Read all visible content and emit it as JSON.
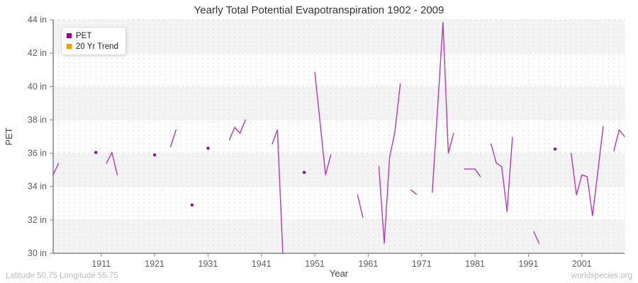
{
  "header": {
    "title": "Yearly Total Potential Evapotranspiration 1902 - 2009"
  },
  "legend": {
    "items": [
      {
        "label": "PET",
        "color": "#990099"
      },
      {
        "label": "20 Yr Trend",
        "color": "#ff9900"
      }
    ]
  },
  "footer": {
    "left": "Latitude 50.75 Longitude 55.75",
    "right": "worldspecies.org"
  },
  "chart_data": {
    "type": "line",
    "title": "Yearly Total Potential Evapotranspiration 1902 - 2009",
    "xlabel": "Year",
    "ylabel": "PET",
    "xlim": [
      1902,
      2009
    ],
    "ylim": [
      30,
      44
    ],
    "grid": true,
    "legend_position": "top-left",
    "y_ticks": [
      {
        "value": 30,
        "label": "30 in"
      },
      {
        "value": 32,
        "label": "32 in"
      },
      {
        "value": 34,
        "label": "34 in"
      },
      {
        "value": 36,
        "label": "36 in"
      },
      {
        "value": 38,
        "label": "38 in"
      },
      {
        "value": 40,
        "label": "40 in"
      },
      {
        "value": 42,
        "label": "42 in"
      },
      {
        "value": 44,
        "label": "44 in"
      }
    ],
    "x_ticks": [
      {
        "value": 1911,
        "label": "1911"
      },
      {
        "value": 1921,
        "label": "1921"
      },
      {
        "value": 1931,
        "label": "1931"
      },
      {
        "value": 1941,
        "label": "1941"
      },
      {
        "value": 1951,
        "label": "1951"
      },
      {
        "value": 1961,
        "label": "1961"
      },
      {
        "value": 1971,
        "label": "1971"
      },
      {
        "value": 1981,
        "label": "1981"
      },
      {
        "value": 1991,
        "label": "1991"
      },
      {
        "value": 2001,
        "label": "2001"
      }
    ],
    "series": [
      {
        "name": "PET",
        "line_color": "#b23ab2",
        "point_color": "#8f0f8f",
        "segments": [
          [
            [
              1902,
              34.7
            ],
            [
              1903,
              35.4
            ]
          ],
          [
            [
              1910,
              36.05
            ]
          ],
          [
            [
              1912,
              35.4
            ],
            [
              1913,
              36.05
            ],
            [
              1914,
              34.7
            ]
          ],
          [
            [
              1921,
              35.9
            ]
          ],
          [
            [
              1924,
              36.4
            ],
            [
              1925,
              37.4
            ]
          ],
          [
            [
              1928,
              32.9
            ]
          ],
          [
            [
              1931,
              36.3
            ]
          ],
          [
            [
              1935,
              36.8
            ],
            [
              1936,
              37.55
            ],
            [
              1937,
              37.2
            ],
            [
              1938,
              38.0
            ]
          ],
          [
            [
              1943,
              36.55
            ],
            [
              1944,
              37.4
            ],
            [
              1945,
              30.0
            ]
          ],
          [
            [
              1949,
              34.85
            ]
          ],
          [
            [
              1951,
              40.85
            ],
            [
              1952,
              37.8
            ],
            [
              1953,
              34.7
            ],
            [
              1954,
              35.9
            ]
          ],
          [
            [
              1959,
              33.5
            ],
            [
              1960,
              32.15
            ]
          ],
          [
            [
              1963,
              35.2
            ],
            [
              1964,
              30.6
            ],
            [
              1965,
              35.75
            ],
            [
              1966,
              37.3
            ],
            [
              1967,
              40.15
            ]
          ],
          [
            [
              1969,
              33.8
            ],
            [
              1970,
              33.55
            ]
          ],
          [
            [
              1973,
              33.65
            ],
            [
              1974,
              38.75
            ],
            [
              1975,
              43.85
            ],
            [
              1976,
              36.0
            ],
            [
              1977,
              37.2
            ]
          ],
          [
            [
              1979,
              35.05
            ],
            [
              1980,
              35.05
            ],
            [
              1981,
              35.05
            ],
            [
              1982,
              34.6
            ]
          ],
          [
            [
              1984,
              36.55
            ],
            [
              1985,
              35.4
            ],
            [
              1986,
              35.2
            ],
            [
              1987,
              32.5
            ],
            [
              1988,
              36.95
            ]
          ],
          [
            [
              1992,
              31.3
            ],
            [
              1993,
              30.6
            ]
          ],
          [
            [
              1996,
              36.25
            ]
          ],
          [
            [
              1999,
              36.0
            ],
            [
              2000,
              33.5
            ],
            [
              2001,
              34.7
            ],
            [
              2002,
              34.6
            ],
            [
              2003,
              32.25
            ],
            [
              2004,
              34.9
            ],
            [
              2005,
              37.6
            ]
          ],
          [
            [
              2007,
              36.15
            ],
            [
              2008,
              37.4
            ],
            [
              2009,
              37.0
            ]
          ]
        ]
      },
      {
        "name": "20 Yr Trend",
        "line_color": "#ff9900",
        "point_color": "#ff9900",
        "segments": []
      }
    ],
    "style": {
      "band_gray": "#f3f3f3",
      "band_white": "#ffffff",
      "grid_color": "#e2e2e2",
      "axis_color": "#4a4a4a",
      "tick_color": "#8a8a8a",
      "tick_label_color": "#5e5e5e"
    }
  }
}
